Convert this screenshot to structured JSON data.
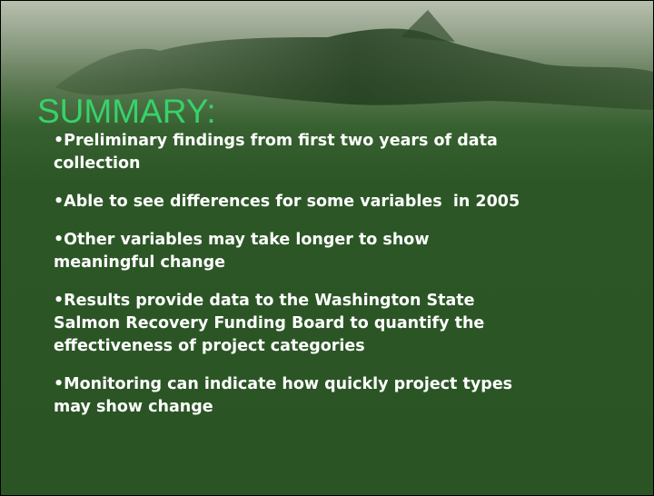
{
  "title": "SUMMARY:",
  "bullets": [
    [
      "•Preliminary findings from first two years of data",
      "collection"
    ],
    [
      "•Able to see differences for some variables  in 2005"
    ],
    [
      "•Other variables may take longer to show",
      "meaningful change"
    ],
    [
      "•Results provide data to the Washington State",
      "Salmon Recovery Funding Board to quantify the",
      "effectiveness of project categories"
    ],
    [
      "•Monitoring can indicate how quickly project types",
      "may show change"
    ]
  ]
}
